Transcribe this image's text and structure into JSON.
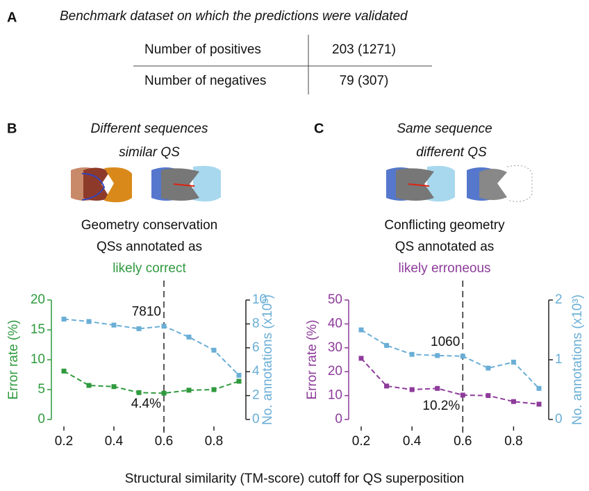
{
  "panel_a": {
    "label": "A",
    "title": "Benchmark dataset on which the predictions were validated",
    "table": {
      "rows": [
        [
          "Number of positives",
          "203 (1271)"
        ],
        [
          "Number of negatives",
          "79 (307)"
        ]
      ]
    }
  },
  "panel_b": {
    "label": "B",
    "heading": [
      "Different sequences",
      "similar QS"
    ],
    "caption": [
      "Geometry conservation",
      "QSs annotated as"
    ],
    "verdict": "likely correct"
  },
  "panel_c": {
    "label": "C",
    "heading": [
      "Same sequence",
      "different QS"
    ],
    "caption": [
      "Conflicting geometry",
      "QS annotated as"
    ],
    "verdict": "likely erroneous"
  },
  "x_label": "Structural similarity (TM-score) cutoff for QS superposition",
  "chart_data": [
    {
      "type": "line",
      "x": [
        0.2,
        0.3,
        0.4,
        0.5,
        0.6,
        0.7,
        0.8,
        0.9
      ],
      "xlim": [
        0.2,
        0.9
      ],
      "xticks": [
        0.2,
        0.4,
        0.6,
        0.8
      ],
      "ylabel": "Error rate (%)",
      "ylim": [
        0,
        20
      ],
      "yticks": [
        0,
        5,
        10,
        15,
        20
      ],
      "y2label": "No. annotations (x10³)",
      "y2lim": [
        0,
        10
      ],
      "y2ticks": [
        0,
        2,
        4,
        6,
        8,
        10
      ],
      "vline": 0.6,
      "series": [
        {
          "color": "#2f9a3e",
          "values": [
            8.1,
            5.7,
            5.5,
            4.5,
            4.4,
            4.9,
            5.0,
            6.4
          ],
          "value_labels": [
            null,
            null,
            null,
            null,
            "4.4%",
            null,
            null,
            null
          ]
        },
        {
          "color": "#6aaed6",
          "axis": "y2",
          "values": [
            8.4,
            8.2,
            7.9,
            7.6,
            7.81,
            6.9,
            5.8,
            3.7
          ],
          "value_labels": [
            null,
            null,
            null,
            null,
            "7810",
            null,
            null,
            null
          ]
        }
      ]
    },
    {
      "type": "line",
      "x": [
        0.2,
        0.3,
        0.4,
        0.5,
        0.6,
        0.7,
        0.8,
        0.9
      ],
      "xlim": [
        0.2,
        0.9
      ],
      "xticks": [
        0.2,
        0.4,
        0.6,
        0.8
      ],
      "ylabel": "Error rate (%)",
      "ylim": [
        0,
        50
      ],
      "yticks": [
        0,
        10,
        20,
        30,
        40,
        50
      ],
      "y2label": "No. annotations (x10³)",
      "y2lim": [
        0,
        2
      ],
      "y2ticks": [
        0,
        1,
        2
      ],
      "vline": 0.6,
      "series": [
        {
          "color": "#8e3b9b",
          "values": [
            25.6,
            14,
            12.5,
            13,
            10.2,
            10,
            7.5,
            6.4
          ],
          "value_labels": [
            null,
            null,
            null,
            null,
            "10.2%",
            null,
            null,
            null
          ]
        },
        {
          "color": "#6aaed6",
          "axis": "y2",
          "values": [
            1.5,
            1.24,
            1.09,
            1.07,
            1.06,
            0.86,
            0.96,
            0.52
          ],
          "value_labels": [
            null,
            null,
            null,
            null,
            "1060",
            null,
            null,
            null
          ]
        }
      ]
    }
  ]
}
